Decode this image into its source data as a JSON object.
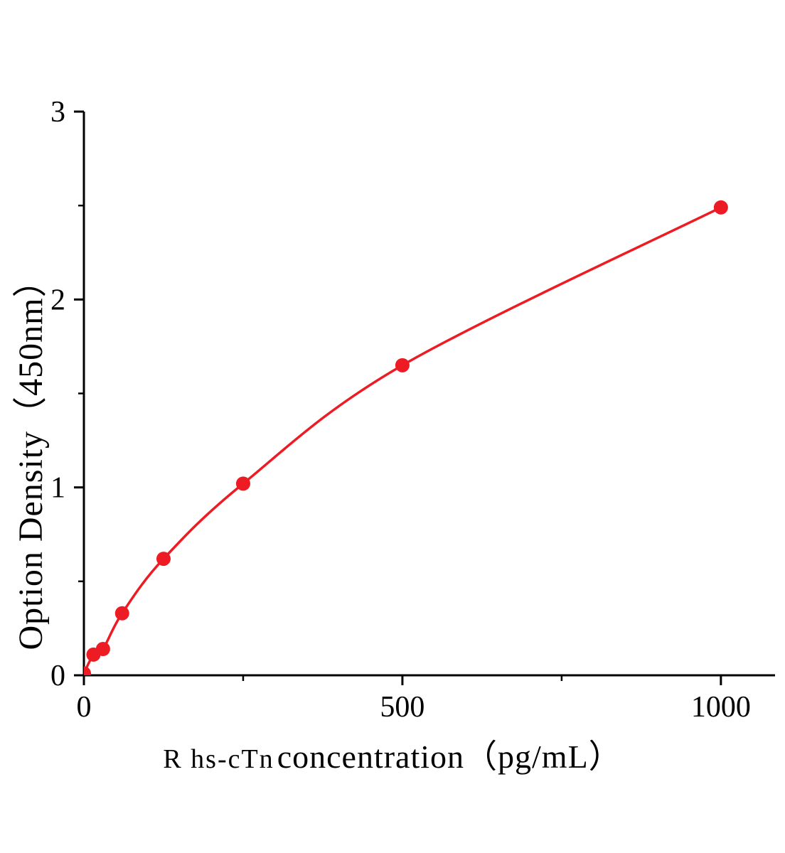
{
  "page": {
    "background_color": "#ffffff"
  },
  "chart_data": {
    "type": "line",
    "title": "",
    "xlabel_prefix": "R hs-cTn",
    "xlabel_main": "concentration（pg/mL）",
    "ylabel": "Option Density（450nm）",
    "x": [
      0,
      15,
      30,
      60,
      125,
      250,
      500,
      1000
    ],
    "y": [
      0.01,
      0.11,
      0.14,
      0.33,
      0.62,
      1.02,
      1.65,
      2.49
    ],
    "xlim": [
      0,
      1085
    ],
    "ylim": [
      0,
      3
    ],
    "x_major_ticks": [
      0,
      500,
      1000
    ],
    "x_minor_ticks": [
      250,
      750
    ],
    "y_major_ticks": [
      0,
      1,
      2,
      3
    ],
    "y_minor_ticks": [
      0.5,
      1.5,
      2.5
    ],
    "grid": false,
    "legend": null,
    "line_color": "#ed1c24",
    "marker_color": "#ed1c24",
    "axis_color": "#000000",
    "marker_radius": 10,
    "line_width": 3.5
  }
}
